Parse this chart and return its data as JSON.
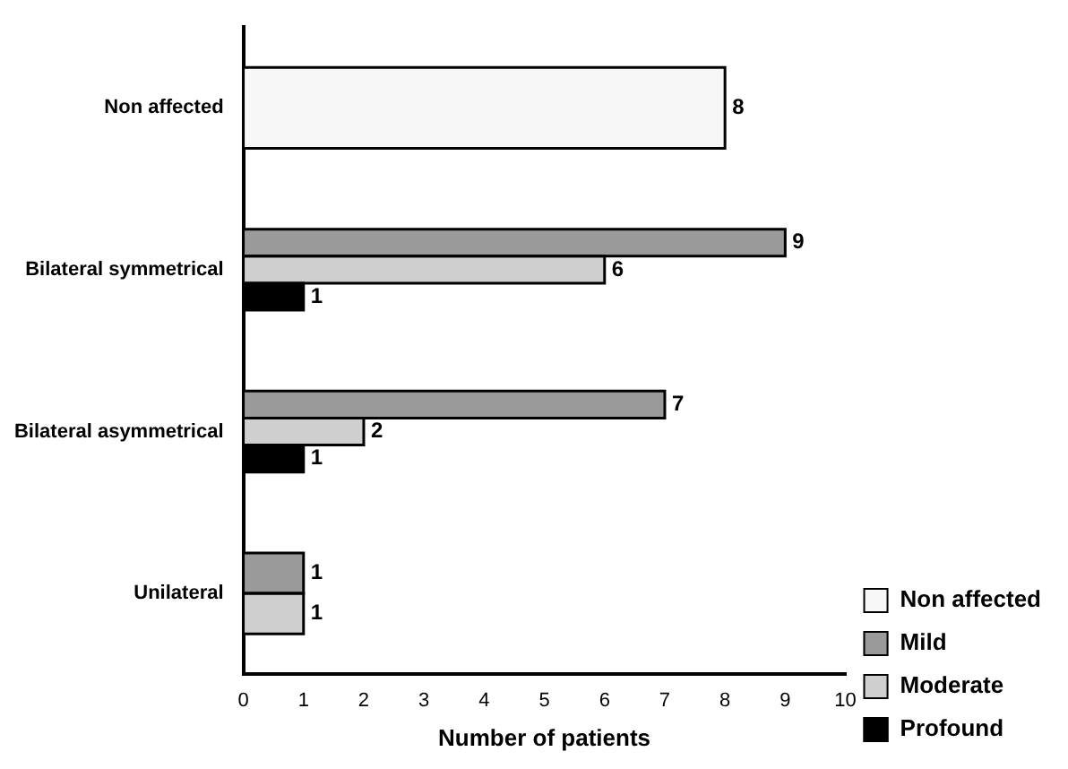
{
  "chart_data": {
    "type": "bar",
    "orientation": "horizontal",
    "xlabel": "Number of patients",
    "categories": [
      "Non affected",
      "Bilateral symmetrical",
      "Bilateral asymmetrical",
      "Unilateral"
    ],
    "series": [
      {
        "name": "Non affected",
        "color": "#f7f7f7",
        "values": [
          8,
          null,
          null,
          null
        ]
      },
      {
        "name": "Mild",
        "color": "#9a9a9a",
        "values": [
          null,
          9,
          7,
          1
        ]
      },
      {
        "name": "Moderate",
        "color": "#cfcfcf",
        "values": [
          null,
          6,
          2,
          1
        ]
      },
      {
        "name": "Profound",
        "color": "#000000",
        "values": [
          null,
          1,
          1,
          null
        ]
      }
    ],
    "xlim": [
      0,
      10
    ],
    "xticks": [
      0,
      1,
      2,
      3,
      4,
      5,
      6,
      7,
      8,
      9,
      10
    ],
    "grid": false,
    "legend": "bottom right",
    "data_labels": true
  }
}
